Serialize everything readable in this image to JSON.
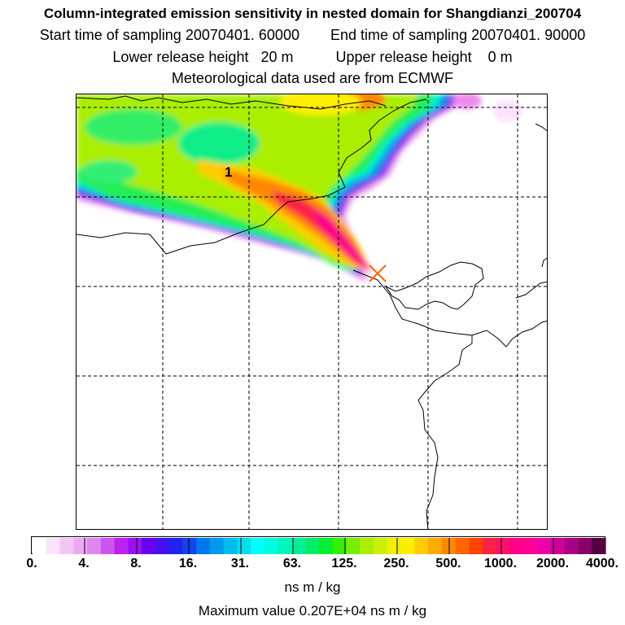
{
  "header": {
    "title": "Column-integrated emission sensitivity in nested domain for Shangdianzi_200704",
    "start_label": "Start time of sampling 20070401. 60000",
    "end_label": "End time of sampling 20070401. 90000",
    "lower_label": "Lower release height   20 m",
    "upper_label": "Upper release height    0 m",
    "met_label": "Meteorological data used are from ECMWF"
  },
  "map": {
    "marker_label": "1",
    "release_marker": "x-marker-icon"
  },
  "legend": {
    "ticks": [
      "0.",
      "4.",
      "8.",
      "16.",
      "31.",
      "63.",
      "125.",
      "250.",
      "500.",
      "1000.",
      "2000.",
      "4000."
    ],
    "colors": [
      "#ffffff",
      "#fbe3fb",
      "#f5c6f5",
      "#eeaaf0",
      "#dd88ee",
      "#cc55ee",
      "#bb22ee",
      "#9911ee",
      "#6600ee",
      "#4411ee",
      "#2222ee",
      "#1144ee",
      "#0077ee",
      "#0099ee",
      "#00bbee",
      "#00ddee",
      "#00ffff",
      "#00fbe0",
      "#00f5bb",
      "#00ee99",
      "#00ee66",
      "#00ee33",
      "#33ee00",
      "#77ee00",
      "#aaee00",
      "#ccf000",
      "#eef000",
      "#ffee00",
      "#ffcc00",
      "#ffaa00",
      "#ff8800",
      "#ff6600",
      "#ff4400",
      "#ff2244",
      "#ff1166",
      "#ff0088",
      "#ff0099",
      "#ee00aa",
      "#cc0099",
      "#aa0088",
      "#880066",
      "#550044"
    ],
    "units": "ns m / kg",
    "max_value": "Maximum value  0.207E+04 ns m / kg"
  }
}
